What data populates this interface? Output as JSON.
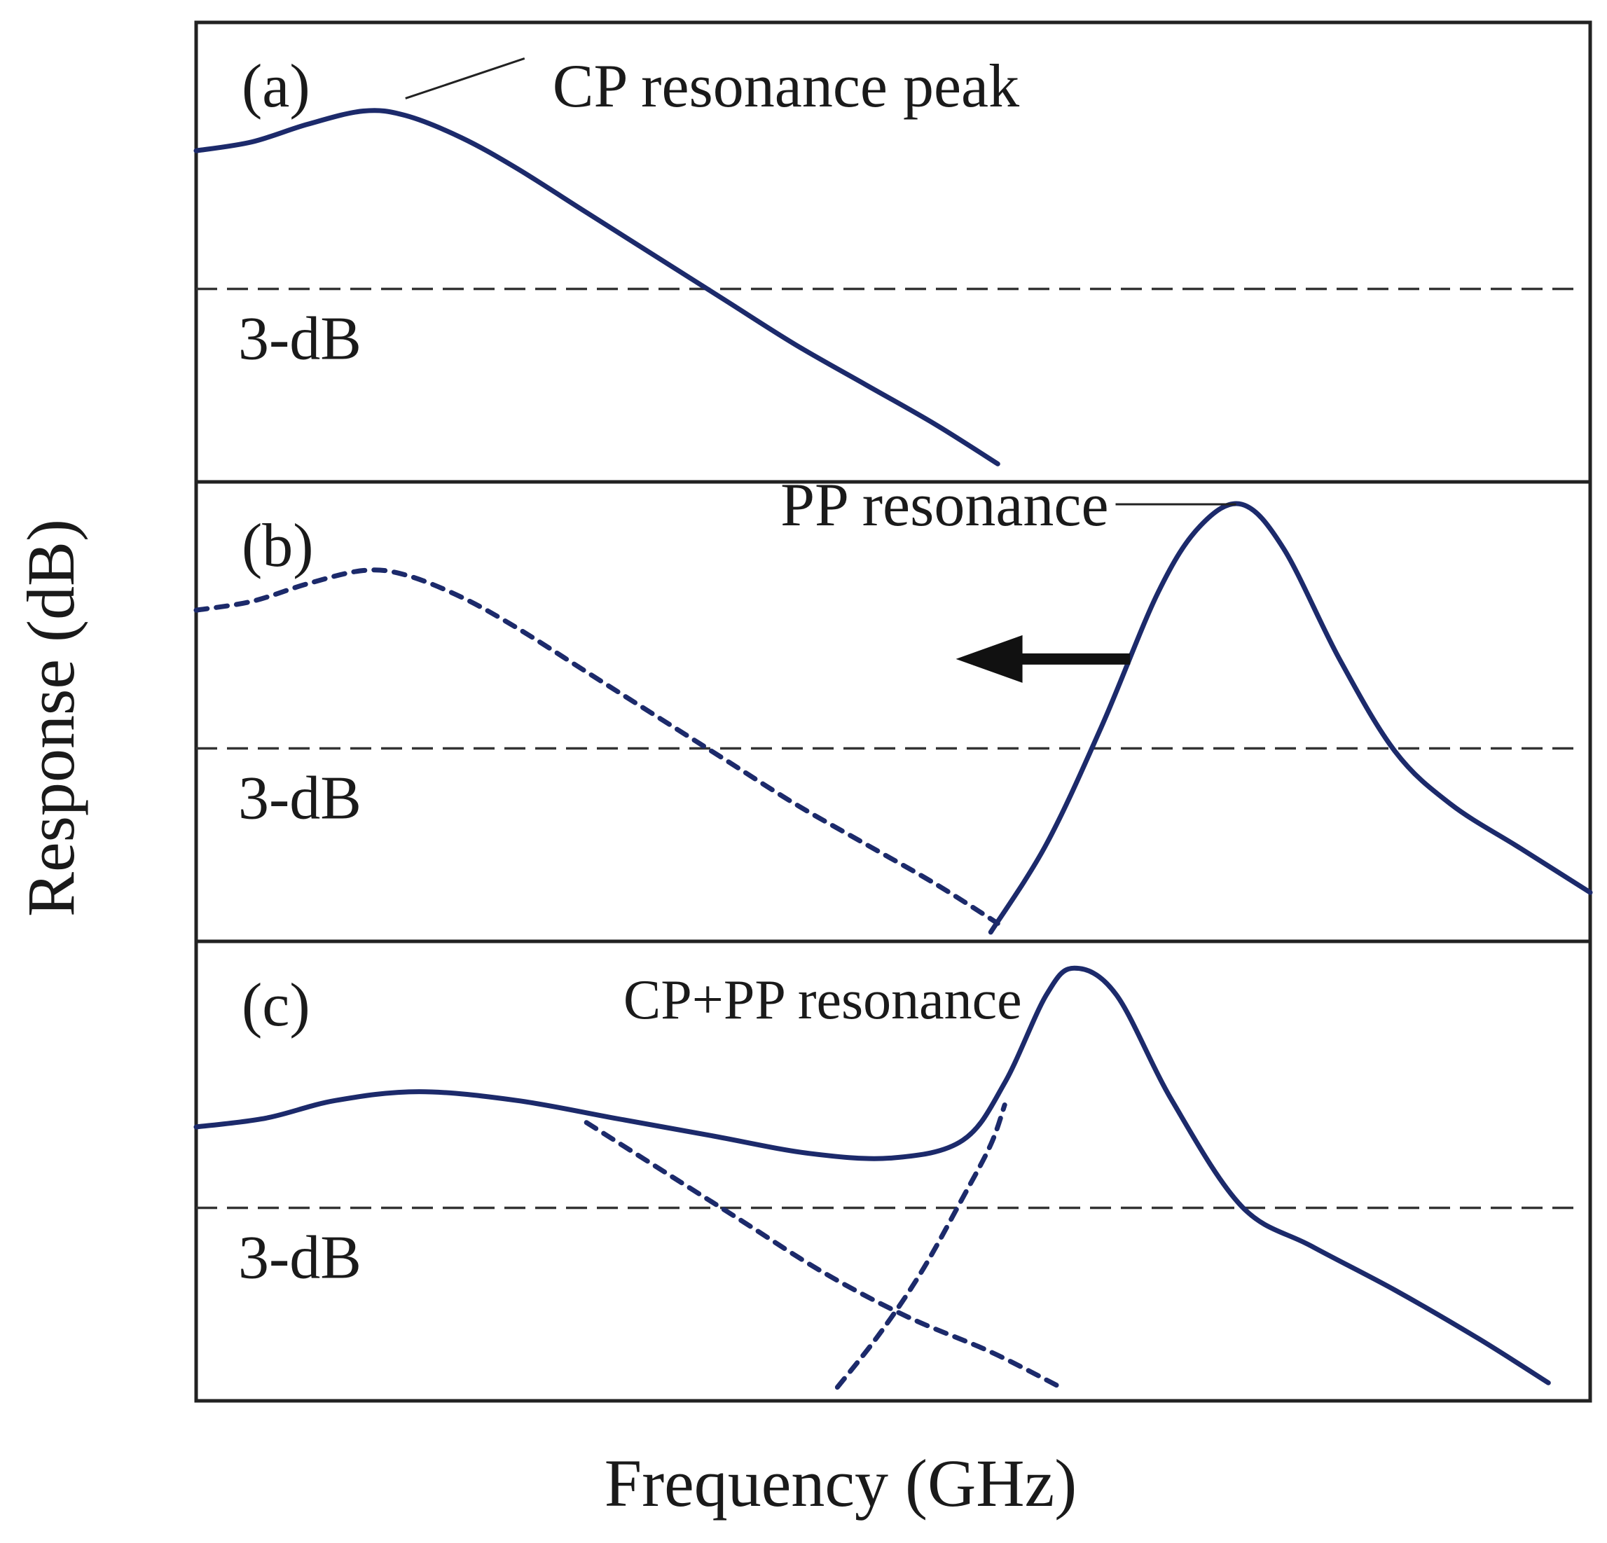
{
  "chart_data": {
    "type": "line",
    "xlabel": "Frequency (GHz)",
    "ylabel": "Response (dB)",
    "colors": {
      "curve": "#1c2a6b",
      "frame": "#222222",
      "threshold": "#333333",
      "arrow": "#111111"
    },
    "panels": [
      {
        "label": "(a)",
        "threshold_label": "3-dB",
        "annotations": [
          {
            "text": "CP resonance peak",
            "target": "peak"
          }
        ],
        "series": [
          {
            "style": "solid",
            "points": [
              [
                0,
                0.73
              ],
              [
                0.04,
                0.75
              ],
              [
                0.08,
                0.79
              ],
              [
                0.12,
                0.82
              ],
              [
                0.15,
                0.81
              ],
              [
                0.19,
                0.76
              ],
              [
                0.23,
                0.69
              ],
              [
                0.28,
                0.59
              ],
              [
                0.33,
                0.49
              ],
              [
                0.38,
                0.39
              ],
              [
                0.43,
                0.29
              ],
              [
                0.48,
                0.2
              ],
              [
                0.53,
                0.11
              ],
              [
                0.575,
                0.02
              ]
            ]
          }
        ]
      },
      {
        "label": "(b)",
        "threshold_label": "3-dB",
        "annotations": [
          {
            "text": "PP resonance",
            "target": "peak"
          }
        ],
        "arrow": {
          "direction": "left"
        },
        "series": [
          {
            "style": "dotted",
            "points": [
              [
                0,
                0.73
              ],
              [
                0.04,
                0.75
              ],
              [
                0.08,
                0.79
              ],
              [
                0.12,
                0.82
              ],
              [
                0.15,
                0.81
              ],
              [
                0.19,
                0.76
              ],
              [
                0.23,
                0.69
              ],
              [
                0.28,
                0.59
              ],
              [
                0.33,
                0.49
              ],
              [
                0.38,
                0.39
              ],
              [
                0.43,
                0.29
              ],
              [
                0.48,
                0.2
              ],
              [
                0.53,
                0.11
              ],
              [
                0.575,
                0.02
              ]
            ]
          },
          {
            "style": "solid",
            "points": [
              [
                0.57,
                0
              ],
              [
                0.61,
                0.2
              ],
              [
                0.65,
                0.47
              ],
              [
                0.69,
                0.77
              ],
              [
                0.72,
                0.92
              ],
              [
                0.75,
                0.97
              ],
              [
                0.78,
                0.87
              ],
              [
                0.82,
                0.62
              ],
              [
                0.86,
                0.41
              ],
              [
                0.9,
                0.29
              ],
              [
                0.95,
                0.19
              ],
              [
                1.0,
                0.09
              ]
            ]
          }
        ]
      },
      {
        "label": "(c)",
        "threshold_label": "3-dB",
        "annotations": [
          {
            "text": "CP+PP resonance",
            "target": "peak"
          }
        ],
        "series": [
          {
            "style": "solid",
            "points": [
              [
                0,
                0.6
              ],
              [
                0.05,
                0.62
              ],
              [
                0.1,
                0.66
              ],
              [
                0.16,
                0.68
              ],
              [
                0.23,
                0.66
              ],
              [
                0.3,
                0.62
              ],
              [
                0.37,
                0.58
              ],
              [
                0.44,
                0.54
              ],
              [
                0.5,
                0.53
              ],
              [
                0.55,
                0.57
              ],
              [
                0.58,
                0.7
              ],
              [
                0.61,
                0.9
              ],
              [
                0.63,
                0.96
              ],
              [
                0.66,
                0.9
              ],
              [
                0.7,
                0.66
              ],
              [
                0.75,
                0.42
              ],
              [
                0.8,
                0.33
              ],
              [
                0.86,
                0.23
              ],
              [
                0.92,
                0.12
              ],
              [
                0.97,
                0.02
              ]
            ]
          },
          {
            "style": "dotted",
            "points": [
              [
                0.28,
                0.61
              ],
              [
                0.33,
                0.51
              ],
              [
                0.39,
                0.39
              ],
              [
                0.45,
                0.27
              ],
              [
                0.51,
                0.17
              ],
              [
                0.57,
                0.09
              ],
              [
                0.62,
                0.01
              ]
            ]
          },
          {
            "style": "dotted",
            "points": [
              [
                0.46,
                0.01
              ],
              [
                0.49,
                0.13
              ],
              [
                0.52,
                0.27
              ],
              [
                0.55,
                0.44
              ],
              [
                0.57,
                0.56
              ],
              [
                0.58,
                0.65
              ]
            ]
          }
        ]
      }
    ]
  }
}
